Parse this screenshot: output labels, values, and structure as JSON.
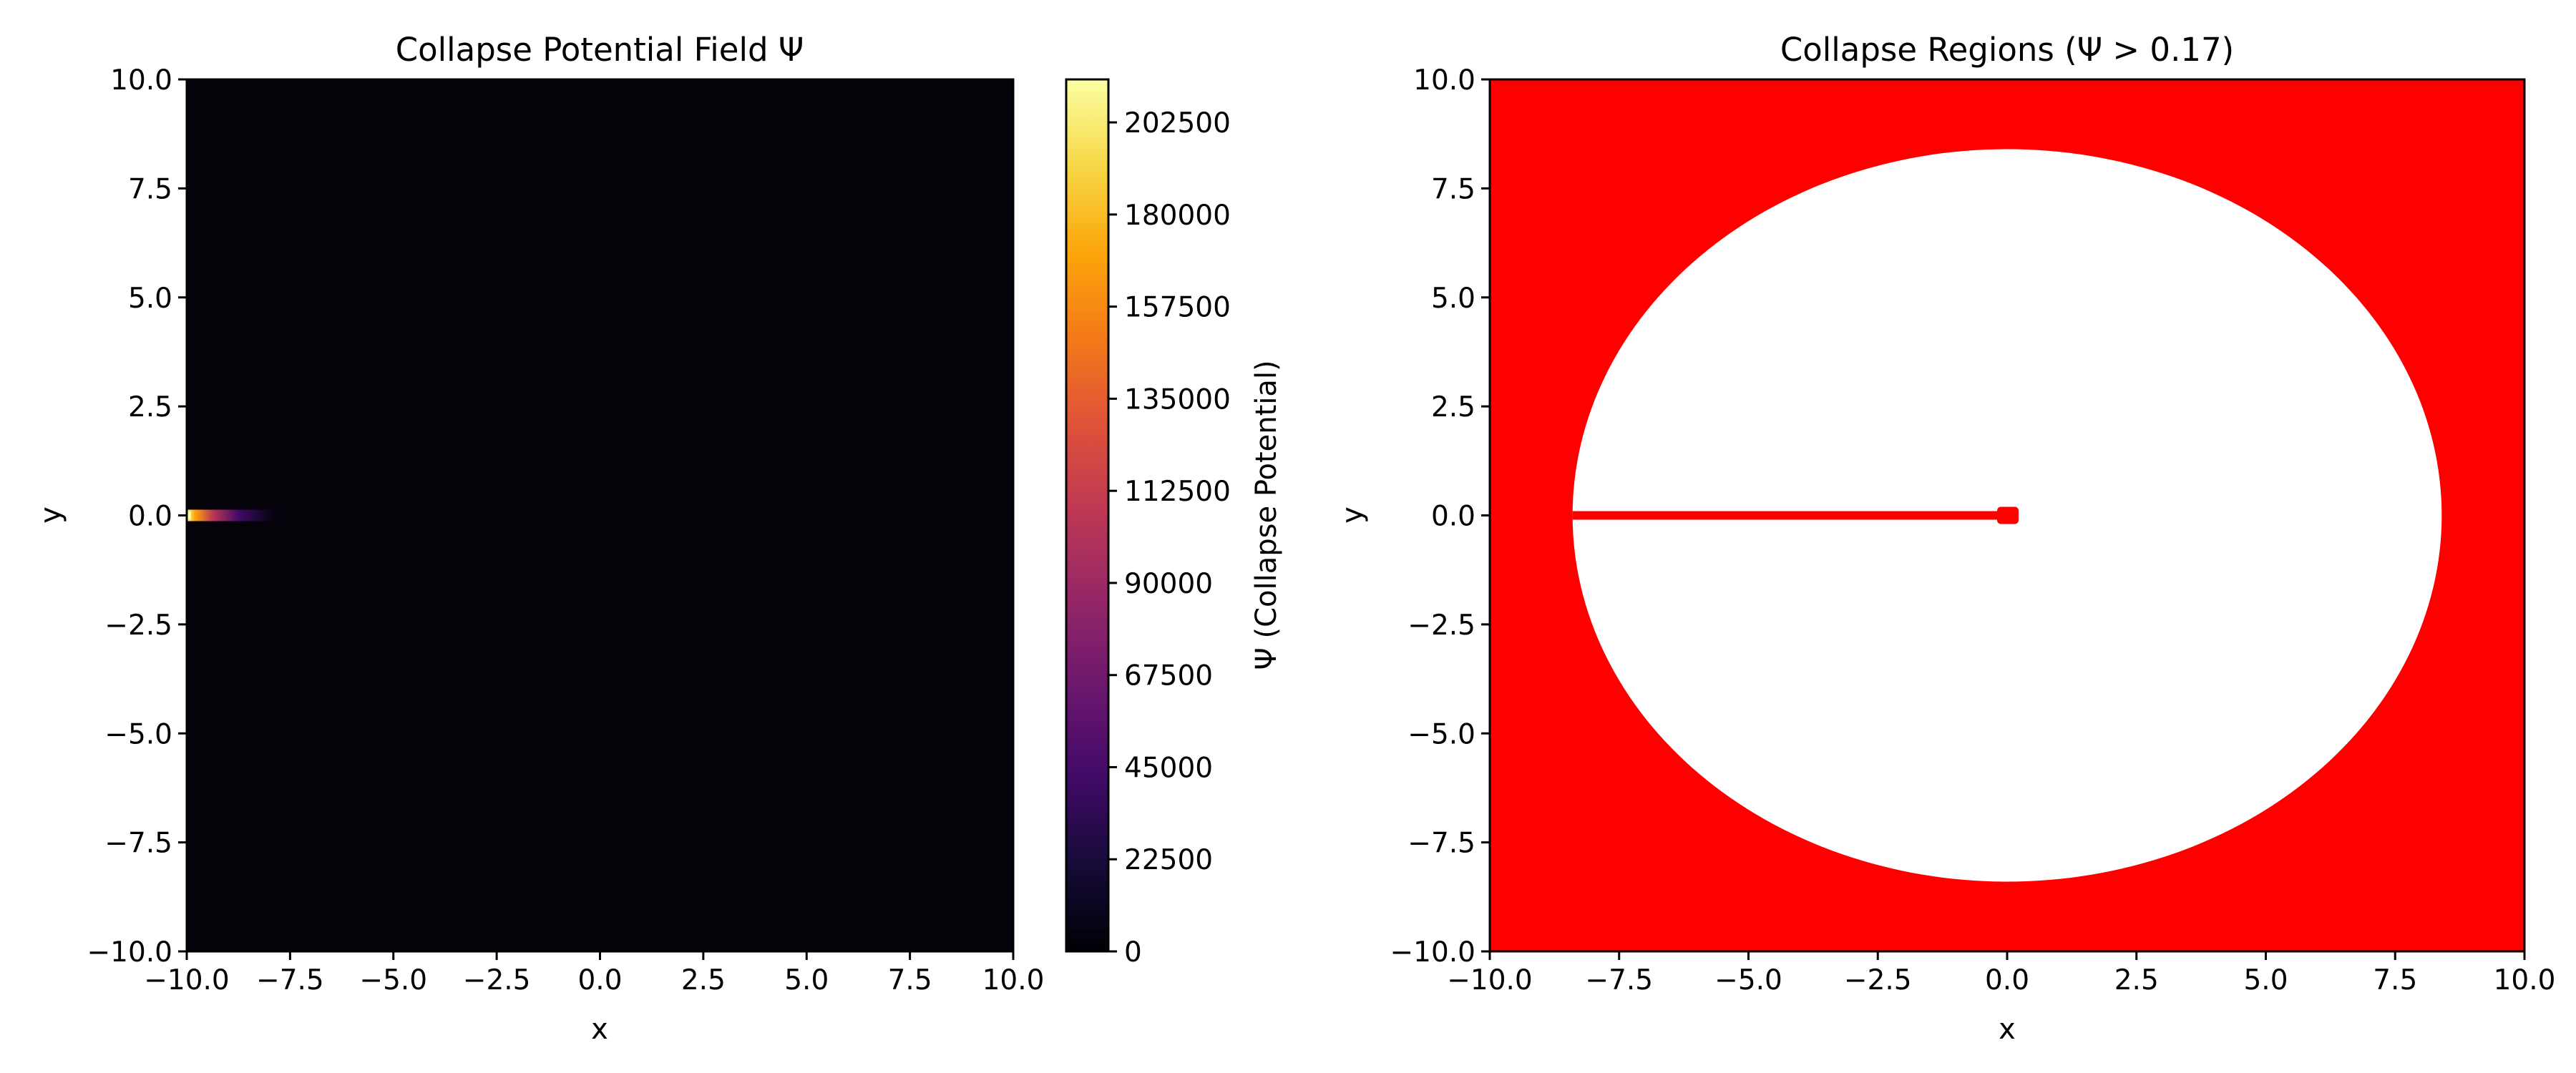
{
  "chart_data": [
    {
      "type": "heatmap",
      "title": "Collapse Potential Field Ψ",
      "xlabel": "x",
      "ylabel": "y",
      "xlim": [
        -10.0,
        10.0
      ],
      "ylim": [
        -10.0,
        10.0
      ],
      "xticks": [
        "−10.0",
        "−7.5",
        "−5.0",
        "−2.5",
        "0.0",
        "2.5",
        "5.0",
        "7.5",
        "10.0"
      ],
      "yticks": [
        "−10.0",
        "−7.5",
        "−5.0",
        "−2.5",
        "0.0",
        "2.5",
        "5.0",
        "7.5",
        "10.0"
      ],
      "grid": false,
      "colormap": "inferno",
      "colorbar": {
        "label": "Ψ (Collapse Potential)",
        "min": 0,
        "max": 213000,
        "ticks": [
          "0",
          "22500",
          "45000",
          "67500",
          "90000",
          "112500",
          "135000",
          "157500",
          "180000",
          "202500"
        ]
      },
      "features": [
        {
          "name": "peak",
          "x": -10.0,
          "y": 0.0,
          "value": 213000,
          "decay_extent_x": 2.5
        }
      ],
      "background_value": 0
    },
    {
      "type": "heatmap",
      "title": "Collapse Regions (Ψ > 0.17)",
      "xlabel": "x",
      "ylabel": "y",
      "xlim": [
        -10.0,
        10.0
      ],
      "ylim": [
        -10.0,
        10.0
      ],
      "xticks": [
        "−10.0",
        "−7.5",
        "−5.0",
        "−2.5",
        "0.0",
        "2.5",
        "5.0",
        "7.5",
        "10.0"
      ],
      "yticks": [
        "−10.0",
        "−7.5",
        "−5.0",
        "−2.5",
        "0.0",
        "2.5",
        "5.0",
        "7.5",
        "10.0"
      ],
      "grid": false,
      "threshold": 0.17,
      "colors": {
        "collapse": "#ff0000",
        "stable": "#ffffff"
      },
      "regions": [
        {
          "name": "outside-ellipse",
          "state": "collapse"
        },
        {
          "name": "ellipse-interior",
          "state": "stable",
          "center": [
            0.0,
            0.0
          ],
          "radius_x": 8.4,
          "radius_y": 8.4
        },
        {
          "name": "branch-line",
          "state": "collapse",
          "x": [
            -8.4,
            0.0
          ],
          "y": 0.0
        }
      ]
    }
  ]
}
